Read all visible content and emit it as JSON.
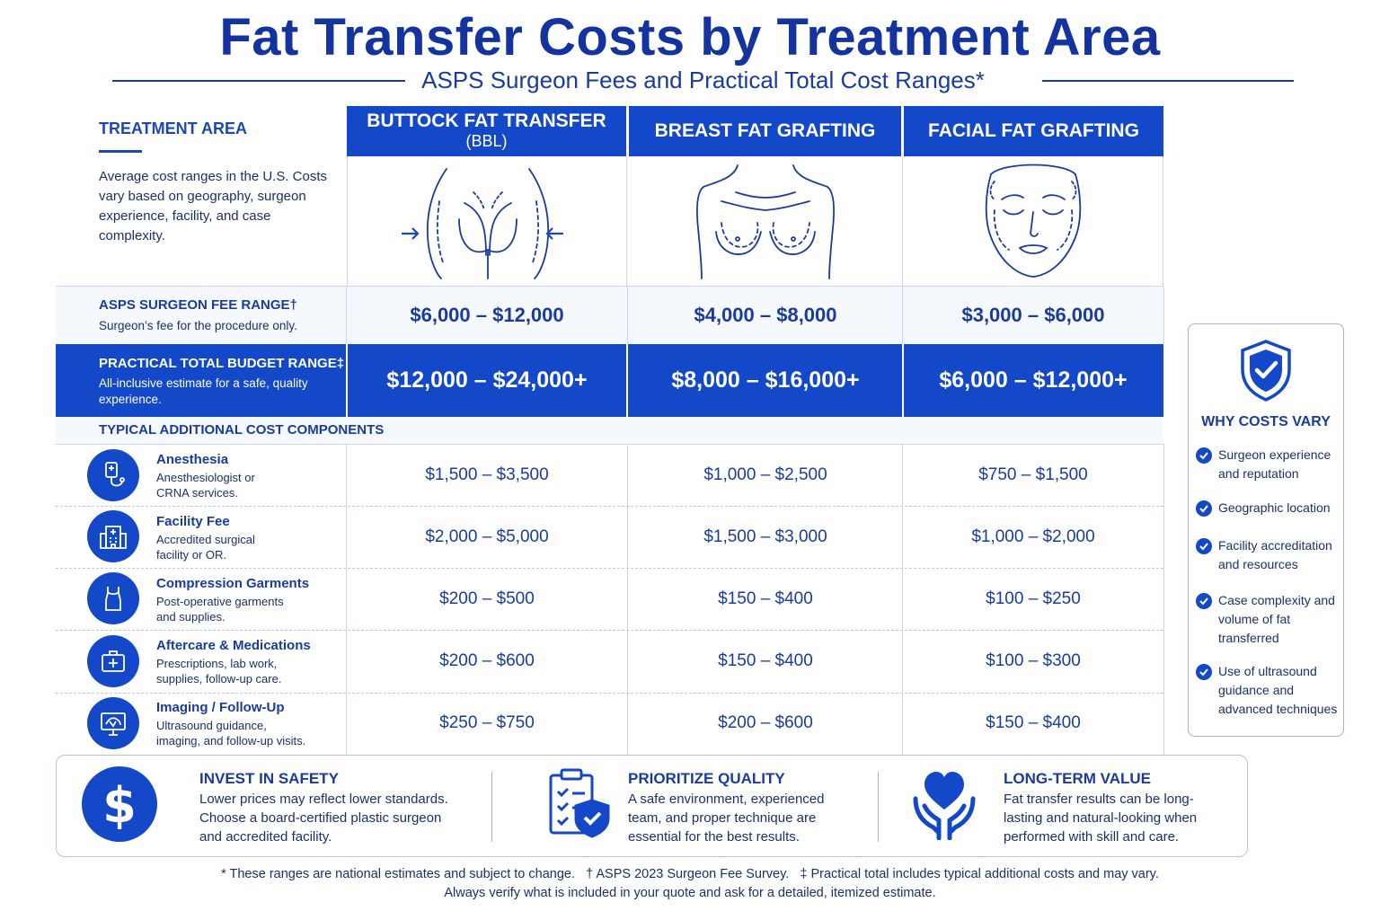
{
  "title": "Fat Transfer Costs by Treatment Area",
  "subtitle": "ASPS Surgeon Fees and Practical Total Cost Ranges*",
  "treatment_area": {
    "label": "TREATMENT AREA",
    "description": "Average cost ranges in the U.S. Costs vary based on geography, surgeon experience, facility, and case complexity."
  },
  "columns": [
    {
      "line1": "BUTTOCK FAT TRANSFER",
      "line2": "(BBL)",
      "icon": "buttocks-illustration-icon"
    },
    {
      "line1": "BREAST FAT GRAFTING",
      "line2": "",
      "icon": "breast-illustration-icon"
    },
    {
      "line1": "FACIAL FAT GRAFTING",
      "line2": "",
      "icon": "face-illustration-icon"
    }
  ],
  "surgeon_fee": {
    "title": "ASPS SURGEON FEE RANGE†",
    "subtitle": "Surgeon’s fee for the procedure only.",
    "values": [
      "$6,000 – $12,000",
      "$4,000 – $8,000",
      "$3,000 – $6,000"
    ]
  },
  "budget": {
    "title": "PRACTICAL TOTAL BUDGET RANGE‡",
    "subtitle": "All-inclusive estimate for a safe, quality experience.",
    "values": [
      "$12,000 – $24,000+",
      "$8,000 – $16,000+",
      "$6,000 – $12,000+"
    ]
  },
  "components_heading": "TYPICAL ADDITIONAL COST COMPONENTS",
  "components": [
    {
      "title": "Anesthesia",
      "sub1": "Anesthesiologist or",
      "sub2": "CRNA services.",
      "icon": "iv-bag-icon",
      "values": [
        "$1,500 – $3,500",
        "$1,000 – $2,500",
        "$750 – $1,500"
      ]
    },
    {
      "title": "Facility Fee",
      "sub1": "Accredited surgical",
      "sub2": "facility or OR.",
      "icon": "hospital-icon",
      "values": [
        "$2,000 – $5,000",
        "$1,500 – $3,000",
        "$1,000 – $2,000"
      ]
    },
    {
      "title": "Compression Garments",
      "sub1": "Post-operative garments",
      "sub2": "and supplies.",
      "icon": "garment-icon",
      "values": [
        "$200 – $500",
        "$150 – $400",
        "$100 – $250"
      ]
    },
    {
      "title": "Aftercare & Medications",
      "sub1": "Prescriptions, lab work,",
      "sub2": "supplies, follow-up care.",
      "icon": "medical-kit-icon",
      "values": [
        "$200 – $600",
        "$150 – $400",
        "$100 – $300"
      ]
    },
    {
      "title": "Imaging / Follow-Up",
      "sub1": "Ultrasound guidance,",
      "sub2": "imaging, and follow-up visits.",
      "icon": "monitor-icon",
      "values": [
        "$250 – $750",
        "$200 – $600",
        "$150 – $400"
      ]
    }
  ],
  "why_costs_vary": {
    "title": "WHY COSTS VARY",
    "icon": "shield-check-icon",
    "items": [
      "Surgeon experience and reputation",
      "Geographic location",
      "Facility accreditation and resources",
      "Case complexity and volume of fat transferred",
      "Use of ultrasound guidance and advanced techniques"
    ]
  },
  "bottom": [
    {
      "title": "INVEST IN SAFETY",
      "text": "Lower prices may reflect lower standards. Choose a board-certified plastic surgeon and accredited facility.",
      "icon": "dollar-icon"
    },
    {
      "title": "PRIORITIZE QUALITY",
      "text": "A safe environment, experienced team, and proper technique are essential for the best results.",
      "icon": "clipboard-shield-icon"
    },
    {
      "title": "LONG-TERM VALUE",
      "text": "Fat transfer results can be long-lasting and natural-looking when performed with skill and care.",
      "icon": "heart-hands-icon"
    }
  ],
  "footnote_line1": "* These ranges are national estimates and subject to change.   † ASPS 2023 Surgeon Fee Survey.   ‡ Practical total includes typical additional costs and may vary.",
  "footnote_line2": "Always verify what is included in your quote and ask for a detailed, itemized estimate.",
  "colors": {
    "primary": "#1348c8",
    "dark": "#1233a0",
    "text": "#1b2f6b"
  }
}
